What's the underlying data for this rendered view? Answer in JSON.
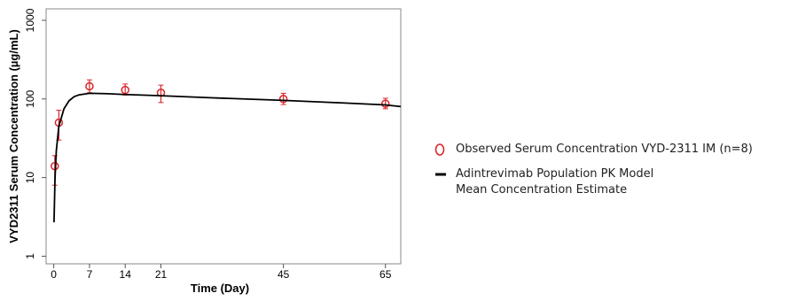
{
  "chart_data": {
    "type": "scatter-line",
    "x_label": "Time (Day)",
    "y_label": "VYD2311 Serum Concentration (µg/mL)",
    "xlim": [
      -1.5,
      68
    ],
    "xticks": [
      0,
      7,
      14,
      21,
      45,
      65
    ],
    "ylim": [
      0.8,
      1400
    ],
    "yticks": [
      1,
      10,
      100,
      1000
    ],
    "ylog": true,
    "series": [
      {
        "name": "Observed Serum Concentration VYD-2311 IM (n=8)",
        "kind": "points",
        "color": "#d9262b",
        "x": [
          0.2,
          1,
          7,
          14,
          21,
          45,
          65
        ],
        "values": [
          14,
          50,
          145,
          130,
          120,
          100,
          87
        ],
        "lower": [
          8,
          30,
          120,
          112,
          90,
          85,
          75
        ],
        "upper": [
          19,
          72,
          175,
          155,
          150,
          118,
          102
        ]
      },
      {
        "name": "Adintrevimab Population PK Model Mean Concentration Estimate",
        "kind": "line",
        "color": "#000000",
        "x": [
          0.05,
          0.25,
          0.5,
          1,
          2,
          3,
          4,
          5,
          7,
          10,
          14,
          21,
          30,
          45,
          55,
          65,
          68
        ],
        "values": [
          2.7,
          10,
          22,
          45,
          75,
          95,
          107,
          113,
          118,
          117,
          114,
          110,
          104,
          96,
          90,
          84,
          80
        ]
      }
    ]
  }
}
